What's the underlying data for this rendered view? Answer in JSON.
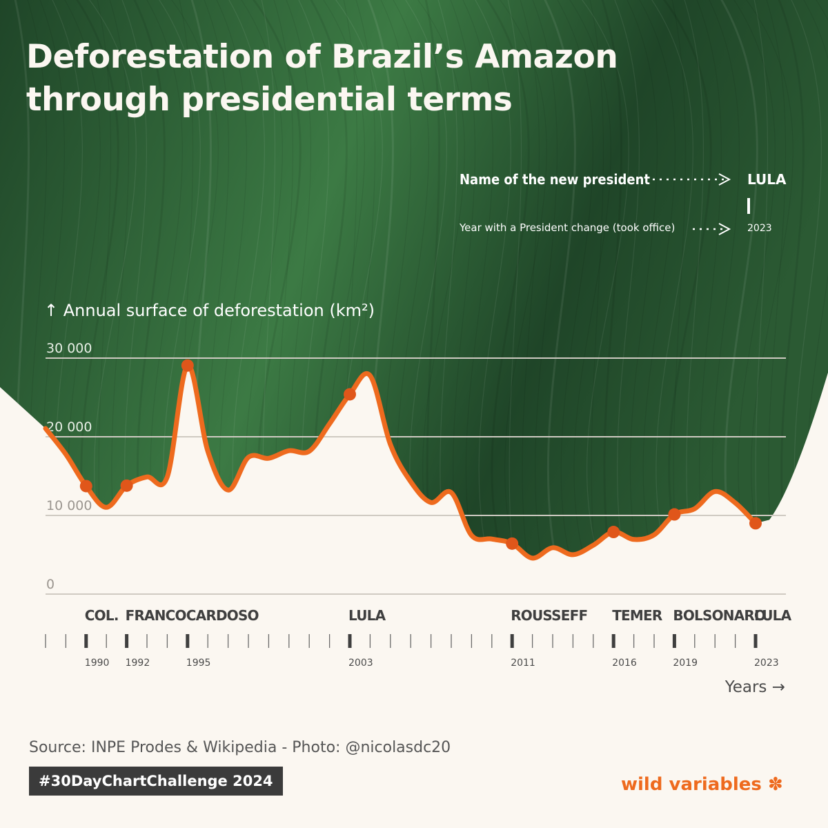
{
  "title": "Deforestation of Brazil’s Amazon through presidential terms",
  "legend": {
    "name_text": "Name of the new president",
    "year_text": "Year with a President change (took office)",
    "example_president": "LULA",
    "example_year": "2023"
  },
  "y_axis_label": "↑ Annual surface of deforestation (km²)",
  "x_axis_label": "Years →",
  "source": "Source: INPE Prodes & Wikipedia - Photo: @nicolasdc20",
  "hashtag": "#30DayChartChallenge 2024",
  "brand": "wild variables",
  "colors": {
    "line": "#ee6a1e",
    "marker": "#e0561a",
    "gridline": "#cfcac2",
    "tick": "#4a4a4a",
    "leaf_dark": "#1f4528",
    "leaf_light": "#3c7a44",
    "background": "#fbf7f1"
  },
  "chart_data": {
    "type": "line",
    "title": "Deforestation of Brazil’s Amazon through presidential terms",
    "xlabel": "Years",
    "ylabel": "Annual surface of deforestation (km²)",
    "ylim": [
      0,
      30000
    ],
    "xlim": [
      1988,
      2023
    ],
    "y_ticks": [
      0,
      10000,
      20000,
      30000
    ],
    "y_tick_labels": [
      "0",
      "10 000",
      "20 000",
      "30 000"
    ],
    "series": [
      {
        "name": "Annual deforestation (km²)",
        "x": [
          1988,
          1989,
          1990,
          1991,
          1992,
          1993,
          1994,
          1995,
          1996,
          1997,
          1998,
          1999,
          2000,
          2001,
          2002,
          2003,
          2004,
          2005,
          2006,
          2007,
          2008,
          2009,
          2010,
          2011,
          2012,
          2013,
          2014,
          2015,
          2016,
          2017,
          2018,
          2019,
          2020,
          2021,
          2022,
          2023
        ],
        "values": [
          21050,
          17770,
          13730,
          11030,
          13786,
          14896,
          14896,
          29059,
          18161,
          13227,
          17383,
          17259,
          18226,
          18165,
          21651,
          25396,
          27772,
          19014,
          14286,
          11651,
          12911,
          7464,
          7000,
          6418,
          4571,
          5891,
          5012,
          6207,
          7893,
          6947,
          7536,
          10129,
          10851,
          13038,
          11594,
          9001
        ]
      }
    ],
    "presidential_changes": [
      {
        "year": 1990,
        "name": "COL."
      },
      {
        "year": 1992,
        "name": "FRANCO"
      },
      {
        "year": 1995,
        "name": "CARDOSO"
      },
      {
        "year": 2003,
        "name": "LULA"
      },
      {
        "year": 2011,
        "name": "ROUSSEFF"
      },
      {
        "year": 2016,
        "name": "TEMER"
      },
      {
        "year": 2019,
        "name": "BOLSONARO"
      },
      {
        "year": 2023,
        "name": "LULA"
      }
    ]
  }
}
